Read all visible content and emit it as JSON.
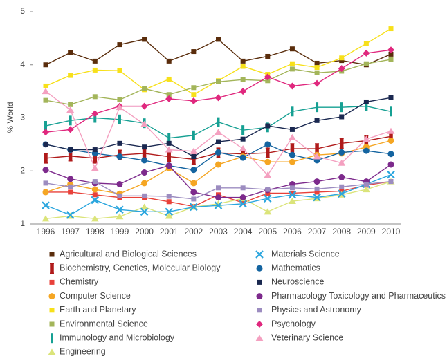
{
  "chart_data": {
    "type": "line",
    "y_label": "% World",
    "categories": [
      "1996",
      "1997",
      "1998",
      "1999",
      "2000",
      "2001",
      "2002",
      "2003",
      "2004",
      "2005",
      "2006",
      "2007",
      "2008",
      "2009",
      "2010"
    ],
    "ylim": [
      1,
      5
    ],
    "yticks": [
      1,
      2,
      3,
      4,
      5
    ],
    "series": [
      {
        "name": "Agricultural and Biological Sciences",
        "color": "#5a2d0c",
        "marker": "square",
        "values": [
          4.0,
          4.23,
          4.07,
          4.38,
          4.48,
          4.07,
          4.25,
          4.48,
          4.07,
          4.16,
          4.3,
          4.03,
          4.08,
          4.0,
          4.2
        ]
      },
      {
        "name": "Biochemistry, Genetics, Molecular Biology",
        "color": "#b01a1a",
        "marker": "errorbar",
        "values": [
          2.24,
          2.28,
          2.24,
          2.3,
          2.33,
          2.27,
          2.22,
          2.34,
          2.32,
          2.34,
          2.42,
          2.42,
          2.52,
          2.57,
          2.65
        ]
      },
      {
        "name": "Chemistry",
        "color": "#e8413a",
        "marker": "square",
        "values": [
          1.6,
          1.6,
          1.55,
          1.5,
          1.5,
          1.42,
          1.33,
          1.55,
          1.4,
          1.58,
          1.58,
          1.6,
          1.62,
          1.73,
          1.8
        ]
      },
      {
        "name": "Computer Science",
        "color": "#f5a623",
        "marker": "circle",
        "values": [
          1.6,
          1.75,
          1.65,
          1.57,
          1.77,
          2.05,
          1.77,
          2.12,
          2.27,
          2.17,
          2.17,
          2.3,
          2.33,
          2.45,
          2.57
        ]
      },
      {
        "name": "Earth and Planetary",
        "color": "#f7e01a",
        "marker": "square",
        "values": [
          3.6,
          3.8,
          3.9,
          3.89,
          3.53,
          3.73,
          3.44,
          3.7,
          3.97,
          3.82,
          4.02,
          3.95,
          4.13,
          4.4,
          4.68
        ]
      },
      {
        "name": "Environmental Science",
        "color": "#a3b55a",
        "marker": "square",
        "values": [
          3.33,
          3.25,
          3.4,
          3.34,
          3.55,
          3.44,
          3.57,
          3.68,
          3.72,
          3.7,
          3.92,
          3.85,
          3.88,
          4.02,
          4.1
        ]
      },
      {
        "name": "Immunology and Microbiology",
        "color": "#16a093",
        "marker": "bar",
        "values": [
          2.85,
          2.95,
          3.0,
          2.97,
          2.9,
          2.62,
          2.67,
          2.92,
          2.77,
          2.82,
          3.12,
          3.2,
          3.2,
          3.22,
          3.12
        ]
      },
      {
        "name": "Engineering",
        "color": "#dbe47a",
        "marker": "triangle",
        "values": [
          1.1,
          1.15,
          1.1,
          1.14,
          1.32,
          1.15,
          1.32,
          1.38,
          1.48,
          1.23,
          1.43,
          1.48,
          1.55,
          1.65,
          1.8
        ]
      },
      {
        "name": "Materials Science",
        "color": "#2ba6de",
        "marker": "x",
        "values": [
          1.35,
          1.17,
          1.45,
          1.27,
          1.23,
          1.23,
          1.32,
          1.35,
          1.38,
          1.48,
          1.55,
          1.5,
          1.57,
          1.75,
          1.93
        ]
      },
      {
        "name": "Mathematics",
        "color": "#1464a0",
        "marker": "circle",
        "values": [
          2.5,
          2.4,
          2.33,
          2.27,
          2.2,
          2.1,
          2.02,
          2.35,
          2.25,
          2.5,
          2.3,
          2.2,
          2.35,
          2.38,
          2.32
        ]
      },
      {
        "name": "Neuroscience",
        "color": "#1a2850",
        "marker": "square",
        "values": [
          2.5,
          2.4,
          2.4,
          2.52,
          2.45,
          2.52,
          2.27,
          2.55,
          2.6,
          2.85,
          2.78,
          2.95,
          3.02,
          3.3,
          3.38
        ]
      },
      {
        "name": "Pharmacology Toxicology and Pharmaceutics",
        "color": "#7d2a8c",
        "marker": "circle",
        "values": [
          2.02,
          1.85,
          1.77,
          1.75,
          1.97,
          2.1,
          1.6,
          1.5,
          1.5,
          1.64,
          1.75,
          1.8,
          1.88,
          1.8,
          2.12
        ]
      },
      {
        "name": "Physics and Astronomy",
        "color": "#9c8cc0",
        "marker": "square",
        "values": [
          1.77,
          1.7,
          1.8,
          1.53,
          1.53,
          1.52,
          1.47,
          1.68,
          1.68,
          1.65,
          1.68,
          1.66,
          1.7,
          1.75,
          1.8
        ]
      },
      {
        "name": "Psychology",
        "color": "#e0287e",
        "marker": "diamond",
        "values": [
          2.73,
          2.78,
          3.08,
          3.22,
          3.22,
          3.36,
          3.32,
          3.38,
          3.5,
          3.77,
          3.6,
          3.65,
          3.93,
          4.22,
          4.28
        ]
      },
      {
        "name": "Veterinary Science",
        "color": "#f4a0c0",
        "marker": "triangle",
        "values": [
          3.5,
          3.15,
          2.05,
          3.2,
          2.88,
          2.4,
          2.37,
          2.73,
          2.42,
          1.92,
          2.63,
          2.27,
          2.15,
          2.6,
          2.75
        ]
      }
    ]
  }
}
